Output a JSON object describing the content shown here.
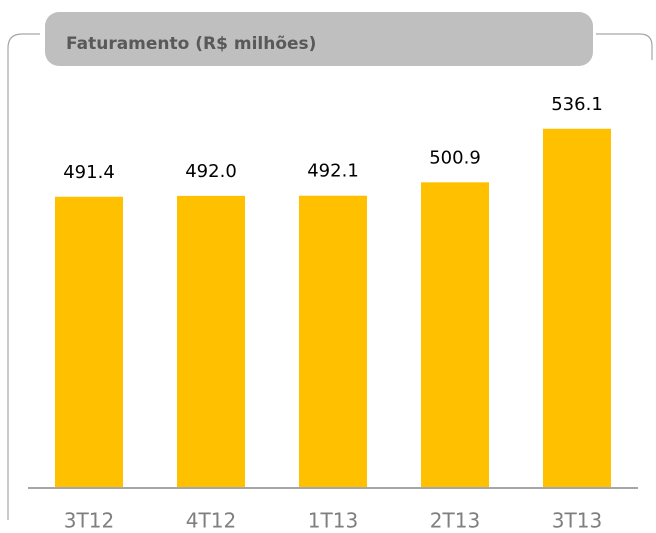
{
  "chart_data": {
    "type": "bar",
    "title": "Faturamento (R$ milhões)",
    "categories": [
      "3T12",
      "4T12",
      "1T13",
      "2T13",
      "3T13"
    ],
    "values": [
      491.4,
      492.0,
      492.1,
      500.9,
      536.1
    ],
    "value_labels": [
      "491.4",
      "492.0",
      "492.1",
      "500.9",
      "536.1"
    ],
    "color": "#ffc000",
    "ylim": [
      300,
      555
    ]
  }
}
